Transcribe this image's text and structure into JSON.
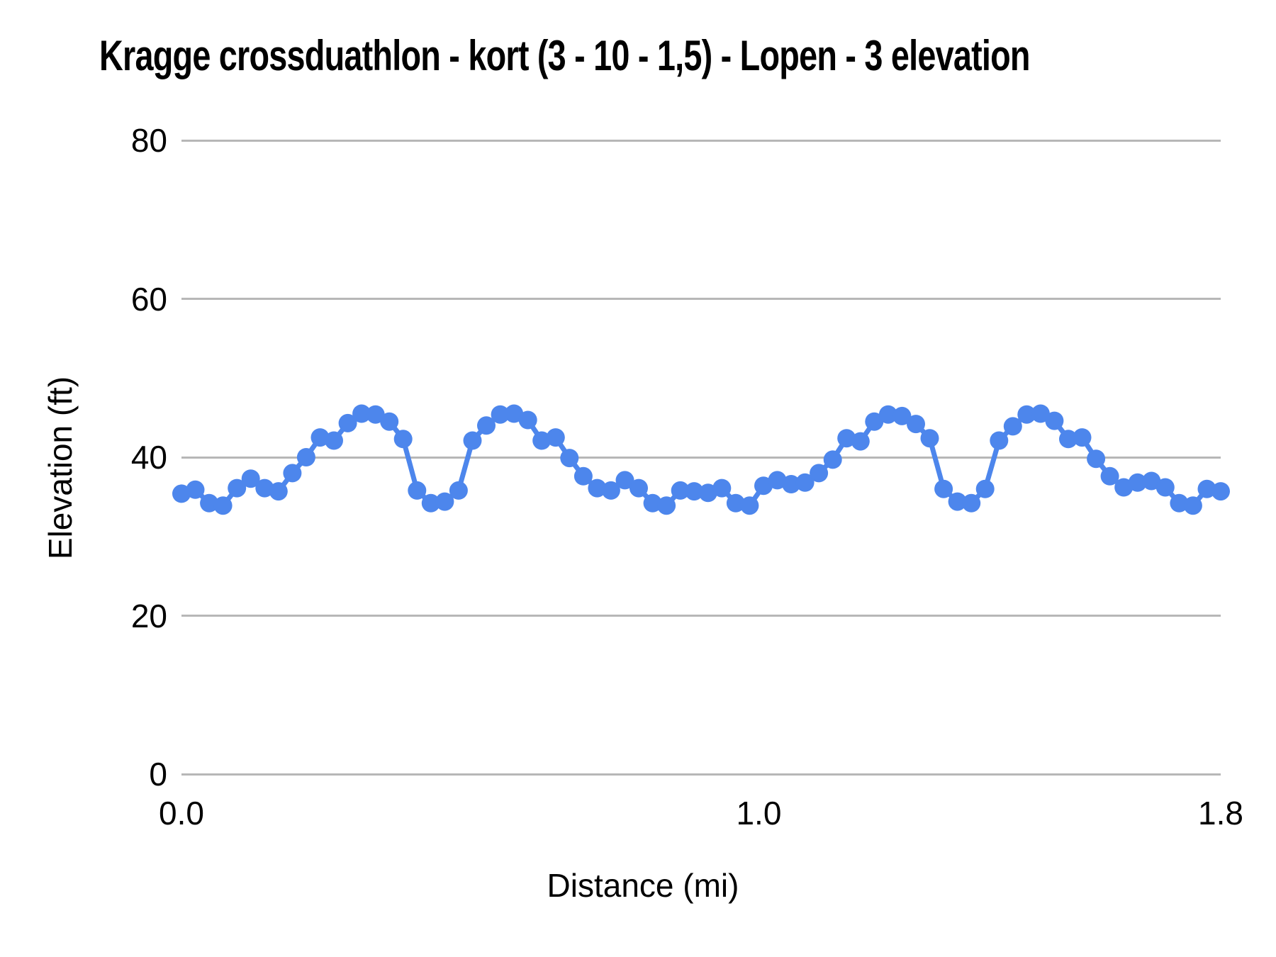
{
  "colors": {
    "series_blue": "#4d86ec",
    "gridline": "#b7b7b7",
    "text": "#000000",
    "background": "#ffffff"
  },
  "chart_data": {
    "type": "line",
    "title": "Kragge crossduathlon - kort (3 - 10 - 1,5) - Lopen - 3 elevation",
    "xlabel": "Distance (mi)",
    "ylabel": "Elevation (ft)",
    "xlim": [
      0,
      1.8
    ],
    "ylim": [
      0,
      80
    ],
    "grid": true,
    "legend": "none",
    "marker": "circle",
    "yticks": [
      {
        "value": 80,
        "label": "80"
      },
      {
        "value": 60,
        "label": "60"
      },
      {
        "value": 40,
        "label": "40"
      },
      {
        "value": 20,
        "label": "20"
      },
      {
        "value": 0,
        "label": "0"
      }
    ],
    "xticks": [
      {
        "value": 0.0,
        "label": "0.0"
      },
      {
        "value": 1.0,
        "label": "1.0"
      },
      {
        "value": 1.8,
        "label": "1.8"
      }
    ],
    "x": [
      0.0,
      0.024,
      0.048,
      0.072,
      0.096,
      0.12,
      0.144,
      0.168,
      0.192,
      0.216,
      0.24,
      0.264,
      0.288,
      0.312,
      0.336,
      0.36,
      0.384,
      0.408,
      0.432,
      0.456,
      0.48,
      0.504,
      0.528,
      0.552,
      0.576,
      0.6,
      0.624,
      0.648,
      0.672,
      0.696,
      0.72,
      0.744,
      0.768,
      0.792,
      0.816,
      0.84,
      0.864,
      0.888,
      0.912,
      0.936,
      0.96,
      0.984,
      1.008,
      1.032,
      1.056,
      1.08,
      1.104,
      1.128,
      1.152,
      1.176,
      1.2,
      1.224,
      1.248,
      1.272,
      1.296,
      1.32,
      1.344,
      1.368,
      1.392,
      1.416,
      1.44,
      1.464,
      1.488,
      1.512,
      1.536,
      1.56,
      1.584,
      1.608,
      1.632,
      1.656,
      1.68,
      1.704,
      1.728,
      1.752,
      1.776,
      1.8
    ],
    "series": [
      {
        "color": "#4d86ec",
        "values": [
          35.4,
          35.9,
          34.2,
          33.9,
          36.1,
          37.3,
          36.1,
          35.7,
          38.0,
          40.0,
          42.5,
          42.1,
          44.3,
          45.5,
          45.4,
          44.5,
          42.3,
          35.8,
          34.2,
          34.4,
          35.8,
          42.1,
          44.0,
          45.4,
          45.5,
          44.7,
          42.1,
          42.5,
          39.9,
          37.6,
          36.1,
          35.8,
          37.1,
          36.1,
          34.2,
          33.9,
          35.8,
          35.7,
          35.5,
          36.1,
          34.2,
          33.9,
          36.4,
          37.1,
          36.6,
          36.8,
          38.0,
          39.7,
          42.4,
          42.0,
          44.5,
          45.4,
          45.2,
          44.2,
          42.4,
          36.0,
          34.4,
          34.2,
          36.0,
          42.1,
          43.9,
          45.4,
          45.5,
          44.6,
          42.3,
          42.5,
          39.8,
          37.6,
          36.2,
          36.8,
          37.0,
          36.2,
          34.2,
          33.9,
          36.0,
          35.7
        ]
      }
    ]
  }
}
